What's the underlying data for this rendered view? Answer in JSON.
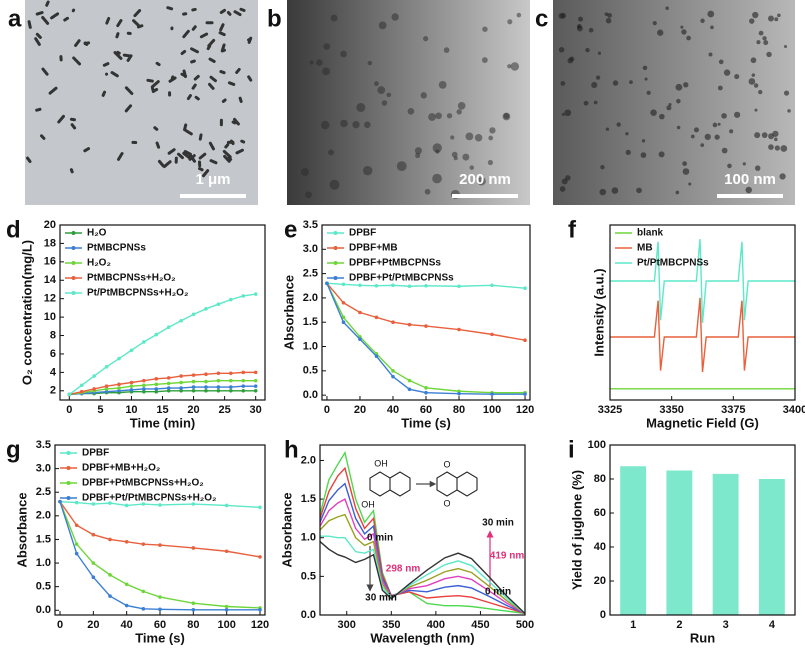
{
  "images": [
    {
      "label": "a",
      "scale_bar": "1 μm"
    },
    {
      "label": "b",
      "scale_bar": "200 nm"
    },
    {
      "label": "c",
      "scale_bar": "100 nm"
    }
  ],
  "chart_data": [
    {
      "panel": "d",
      "type": "line",
      "xlabel": "Time (min)",
      "ylabel": "O₂ concentration(mg/L)",
      "xlim": [
        -1.5,
        31.5
      ],
      "ylim": [
        1,
        20
      ],
      "xticks": [
        0,
        5,
        10,
        15,
        20,
        25,
        30
      ],
      "yticks": [
        2,
        4,
        6,
        8,
        10,
        12,
        14,
        16,
        18,
        20
      ],
      "markers": true,
      "legend": "upper left",
      "x": [
        0,
        2,
        4,
        6,
        8,
        10,
        12,
        14,
        16,
        18,
        20,
        22,
        24,
        26,
        28,
        30
      ],
      "series": [
        {
          "name": "H₂O",
          "color": "#2e9e3a",
          "values": [
            1.6,
            1.7,
            1.7,
            1.8,
            1.8,
            1.9,
            1.9,
            1.9,
            2.0,
            2.0,
            2.0,
            2.0,
            2.0,
            2.0,
            2.0,
            2.0
          ]
        },
        {
          "name": "PtMBCPNSs",
          "color": "#3b7fd4",
          "values": [
            1.6,
            1.7,
            1.8,
            1.9,
            2.0,
            2.1,
            2.2,
            2.2,
            2.3,
            2.3,
            2.4,
            2.4,
            2.4,
            2.4,
            2.5,
            2.5
          ]
        },
        {
          "name": "H₂O₂",
          "color": "#6fd63a",
          "values": [
            1.6,
            1.8,
            2.0,
            2.2,
            2.3,
            2.5,
            2.6,
            2.7,
            2.8,
            2.9,
            3.0,
            3.0,
            3.1,
            3.1,
            3.1,
            3.1
          ]
        },
        {
          "name": "PtMBCPNSs+H₂O₂",
          "color": "#e8603c",
          "values": [
            1.6,
            1.9,
            2.2,
            2.5,
            2.7,
            2.9,
            3.1,
            3.3,
            3.4,
            3.6,
            3.7,
            3.8,
            3.9,
            3.9,
            4.0,
            4.0
          ]
        },
        {
          "name": "Pt/PtMBCPNSs+H₂O₂",
          "color": "#5de8c8",
          "values": [
            1.6,
            2.6,
            3.6,
            4.6,
            5.5,
            6.4,
            7.3,
            8.1,
            8.9,
            9.6,
            10.3,
            10.9,
            11.4,
            11.9,
            12.3,
            12.5
          ]
        }
      ]
    },
    {
      "panel": "e",
      "type": "line",
      "xlabel": "Time (s)",
      "ylabel": "Absorbance",
      "xlim": [
        -3,
        123
      ],
      "ylim": [
        -0.1,
        3.5
      ],
      "xticks": [
        0,
        20,
        40,
        60,
        80,
        100,
        120
      ],
      "yticks": [
        {
          "value": 0,
          "label": "0.0"
        },
        0.5,
        {
          "value": 1,
          "label": "1.0"
        },
        1.5,
        {
          "value": 2,
          "label": "2.0"
        },
        2.5,
        {
          "value": 3,
          "label": "3.0"
        },
        3.5
      ],
      "markers": true,
      "legend": "upper left",
      "x": [
        0,
        10,
        20,
        30,
        40,
        50,
        60,
        80,
        100,
        120
      ],
      "series": [
        {
          "name": "DPBF",
          "color": "#5de8c8",
          "values": [
            2.3,
            2.28,
            2.26,
            2.25,
            2.26,
            2.24,
            2.25,
            2.24,
            2.26,
            2.2
          ]
        },
        {
          "name": "DPBF+MB",
          "color": "#e8603c",
          "values": [
            2.3,
            1.9,
            1.7,
            1.6,
            1.5,
            1.45,
            1.42,
            1.35,
            1.25,
            1.13
          ]
        },
        {
          "name": "DPBF+PtMBCPNSs",
          "color": "#6fd63a",
          "values": [
            2.3,
            1.6,
            1.2,
            0.85,
            0.5,
            0.3,
            0.15,
            0.08,
            0.05,
            0.05
          ]
        },
        {
          "name": "DPBF+Pt/PtMBCPNSs",
          "color": "#3b7fd4",
          "values": [
            2.3,
            1.5,
            1.15,
            0.8,
            0.38,
            0.12,
            0.05,
            0.03,
            0.02,
            0.02
          ]
        }
      ]
    },
    {
      "panel": "f",
      "type": "line",
      "xlabel": "Magnetic Field (G)",
      "ylabel": "Intensity (a.u.)",
      "xlim": [
        3325,
        3400
      ],
      "ylim": [
        -0.5,
        12
      ],
      "xticks": [
        3325,
        3350,
        3375,
        3400
      ],
      "markers": false,
      "legend": "upper left",
      "x": [
        3325,
        3343,
        3344.5,
        3345.5,
        3347,
        3360,
        3361.5,
        3362.5,
        3364,
        3377,
        3378.5,
        3379.5,
        3381,
        3400
      ],
      "series": [
        {
          "name": "blank",
          "color": "#6fd63a",
          "values": [
            0.3,
            0.3,
            0.3,
            0.3,
            0.3,
            0.3,
            0.3,
            0.3,
            0.3,
            0.3,
            0.3,
            0.3,
            0.3,
            0.3
          ]
        },
        {
          "name": "MB",
          "color": "#e8603c",
          "values": [
            4,
            4,
            6.6,
            1.6,
            4,
            4,
            6.8,
            1.5,
            4,
            4,
            6.6,
            1.6,
            4,
            4
          ]
        },
        {
          "name": "Pt/PtMBCPNSs",
          "color": "#5de8c8",
          "values": [
            8,
            8,
            10.8,
            5.2,
            8,
            8,
            11,
            5,
            8,
            8,
            10.8,
            5.2,
            8,
            8
          ]
        }
      ]
    },
    {
      "panel": "g",
      "type": "line",
      "xlabel": "Time (s)",
      "ylabel": "Absorbance",
      "xlim": [
        -3,
        123
      ],
      "ylim": [
        -0.1,
        3.5
      ],
      "xticks": [
        0,
        20,
        40,
        60,
        80,
        100,
        120
      ],
      "yticks": [
        {
          "value": 0,
          "label": "0.0"
        },
        0.5,
        {
          "value": 1,
          "label": "1.0"
        },
        1.5,
        {
          "value": 2,
          "label": "2.0"
        },
        2.5,
        {
          "value": 3,
          "label": "3.0"
        },
        3.5
      ],
      "markers": true,
      "legend": "upper left",
      "x": [
        0,
        10,
        20,
        30,
        40,
        50,
        60,
        80,
        100,
        120
      ],
      "series": [
        {
          "name": "DPBF",
          "color": "#5de8c8",
          "values": [
            2.3,
            2.28,
            2.25,
            2.27,
            2.22,
            2.25,
            2.23,
            2.25,
            2.22,
            2.18
          ]
        },
        {
          "name": "DPBF+MB+H₂O₂",
          "color": "#e8603c",
          "values": [
            2.3,
            1.8,
            1.6,
            1.5,
            1.45,
            1.4,
            1.38,
            1.32,
            1.25,
            1.13
          ]
        },
        {
          "name": "DPBF+PtMBCPNSs+H₂O₂",
          "color": "#6fd63a",
          "values": [
            2.3,
            1.4,
            1.0,
            0.75,
            0.55,
            0.4,
            0.28,
            0.15,
            0.08,
            0.05
          ]
        },
        {
          "name": "DPBF+Pt/PtMBCPNSs+H₂O₂",
          "color": "#3b7fd4",
          "values": [
            2.3,
            1.2,
            0.7,
            0.3,
            0.1,
            0.03,
            0.02,
            0.01,
            0.01,
            0.01
          ]
        }
      ]
    },
    {
      "panel": "h",
      "type": "line",
      "xlabel": "Wavelength (nm)",
      "ylabel": "Absorbance",
      "xlim": [
        270,
        500
      ],
      "ylim": [
        0,
        2.2
      ],
      "xticks": [
        300,
        350,
        400,
        450,
        500
      ],
      "yticks": [
        {
          "value": 0,
          "label": "0.0"
        },
        0.5,
        {
          "value": 1,
          "label": "1.0"
        },
        1.5,
        {
          "value": 2,
          "label": "2.0"
        }
      ],
      "markers": false,
      "annotations": [
        "0 min",
        "298 nm",
        "30 min",
        "30 min",
        "419 nm",
        "0 min"
      ],
      "structure_labels": [
        "OH",
        "OH",
        "O",
        "O"
      ],
      "x": [
        270,
        280,
        290,
        298,
        310,
        320,
        330,
        340,
        350,
        370,
        390,
        410,
        425,
        440,
        460,
        480,
        500
      ],
      "series": [
        {
          "color": "#4fd94f",
          "values": [
            1.3,
            1.75,
            1.95,
            2.1,
            1.5,
            1.2,
            1.35,
            0.55,
            0.25,
            0.3,
            0.15,
            0.12,
            0.12,
            0.11,
            0.08,
            0.05,
            0.02
          ]
        },
        {
          "color": "#e8403c",
          "values": [
            1.25,
            1.6,
            1.8,
            1.9,
            1.38,
            1.12,
            1.25,
            0.52,
            0.25,
            0.3,
            0.22,
            0.24,
            0.25,
            0.23,
            0.16,
            0.09,
            0.02
          ]
        },
        {
          "color": "#3b5fd4",
          "values": [
            1.2,
            1.48,
            1.62,
            1.7,
            1.25,
            1.05,
            1.15,
            0.48,
            0.25,
            0.32,
            0.3,
            0.36,
            0.38,
            0.35,
            0.24,
            0.12,
            0.02
          ]
        },
        {
          "color": "#e040c0",
          "values": [
            1.15,
            1.35,
            1.45,
            1.5,
            1.12,
            0.98,
            1.05,
            0.44,
            0.24,
            0.34,
            0.38,
            0.47,
            0.5,
            0.46,
            0.31,
            0.15,
            0.02
          ]
        },
        {
          "color": "#9aa020",
          "values": [
            1.1,
            1.22,
            1.27,
            1.3,
            1.0,
            0.9,
            0.95,
            0.4,
            0.23,
            0.36,
            0.45,
            0.56,
            0.6,
            0.55,
            0.37,
            0.18,
            0.02
          ]
        },
        {
          "color": "#5de8c8",
          "values": [
            1.02,
            1.02,
            1.0,
            1.0,
            0.82,
            0.8,
            0.85,
            0.36,
            0.22,
            0.38,
            0.52,
            0.65,
            0.7,
            0.64,
            0.43,
            0.21,
            0.02
          ]
        },
        {
          "color": "#333333",
          "values": [
            0.95,
            0.85,
            0.78,
            0.75,
            0.68,
            0.72,
            0.78,
            0.32,
            0.21,
            0.4,
            0.58,
            0.74,
            0.8,
            0.73,
            0.49,
            0.24,
            0.02
          ]
        }
      ]
    },
    {
      "panel": "i",
      "type": "bar",
      "xlabel": "Run",
      "ylabel": "Yield of juglone (%)",
      "ylim": [
        0,
        100
      ],
      "yticks": [
        0,
        20,
        40,
        60,
        80,
        100
      ],
      "color": "#7de8cc",
      "categories": [
        "1",
        "2",
        "3",
        "4"
      ],
      "values": [
        87.5,
        85,
        83,
        80
      ]
    }
  ]
}
